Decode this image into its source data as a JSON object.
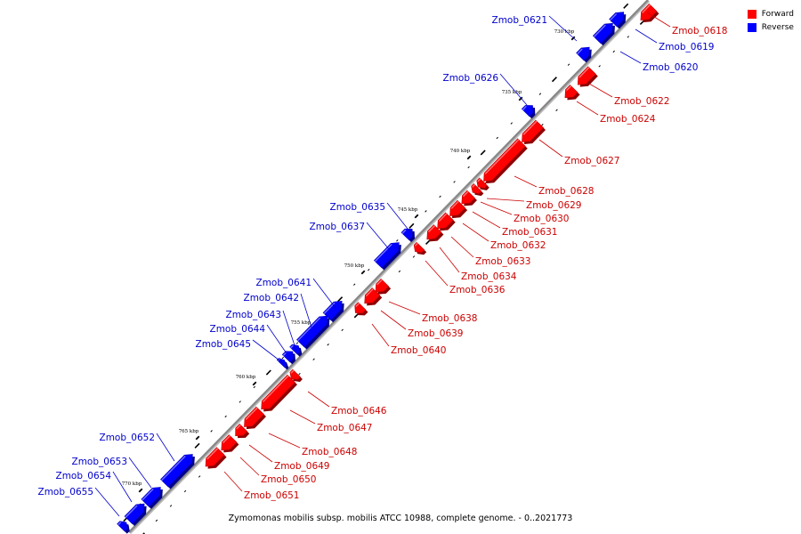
{
  "colors": {
    "forward": "#ff0000",
    "reverse": "#0000ff",
    "backbone": "#888888"
  },
  "legend": [
    {
      "label": "Forward",
      "color": "#ff0000"
    },
    {
      "label": "Reverse",
      "color": "#0000ff"
    }
  ],
  "caption": "Zymomonas mobilis subsp. mobilis ATCC 10988, complete genome. - 0..2021773",
  "scale_ticks": [
    "730 kbp",
    "735 kbp",
    "740 kbp",
    "745 kbp",
    "750 kbp",
    "755 kbp",
    "760 kbp",
    "765 kbp",
    "770 kbp"
  ],
  "genes": [
    {
      "name": "Zmob_0618",
      "strand": "forward"
    },
    {
      "name": "Zmob_0619",
      "strand": "reverse"
    },
    {
      "name": "Zmob_0620",
      "strand": "reverse"
    },
    {
      "name": "Zmob_0621",
      "strand": "reverse"
    },
    {
      "name": "Zmob_0622",
      "strand": "forward"
    },
    {
      "name": "Zmob_0624",
      "strand": "forward"
    },
    {
      "name": "Zmob_0626",
      "strand": "reverse"
    },
    {
      "name": "Zmob_0627",
      "strand": "forward"
    },
    {
      "name": "Zmob_0628",
      "strand": "forward"
    },
    {
      "name": "Zmob_0629",
      "strand": "forward"
    },
    {
      "name": "Zmob_0630",
      "strand": "forward"
    },
    {
      "name": "Zmob_0631",
      "strand": "forward"
    },
    {
      "name": "Zmob_0632",
      "strand": "forward"
    },
    {
      "name": "Zmob_0633",
      "strand": "forward"
    },
    {
      "name": "Zmob_0634",
      "strand": "forward"
    },
    {
      "name": "Zmob_0635",
      "strand": "reverse"
    },
    {
      "name": "Zmob_0636",
      "strand": "forward"
    },
    {
      "name": "Zmob_0637",
      "strand": "reverse"
    },
    {
      "name": "Zmob_0638",
      "strand": "forward"
    },
    {
      "name": "Zmob_0639",
      "strand": "forward"
    },
    {
      "name": "Zmob_0640",
      "strand": "forward"
    },
    {
      "name": "Zmob_0641",
      "strand": "reverse"
    },
    {
      "name": "Zmob_0642",
      "strand": "reverse"
    },
    {
      "name": "Zmob_0643",
      "strand": "reverse"
    },
    {
      "name": "Zmob_0644",
      "strand": "reverse"
    },
    {
      "name": "Zmob_0645",
      "strand": "reverse"
    },
    {
      "name": "Zmob_0646",
      "strand": "forward"
    },
    {
      "name": "Zmob_0647",
      "strand": "forward"
    },
    {
      "name": "Zmob_0648",
      "strand": "forward"
    },
    {
      "name": "Zmob_0649",
      "strand": "forward"
    },
    {
      "name": "Zmob_0650",
      "strand": "forward"
    },
    {
      "name": "Zmob_0651",
      "strand": "forward"
    },
    {
      "name": "Zmob_0652",
      "strand": "reverse"
    },
    {
      "name": "Zmob_0653",
      "strand": "reverse"
    },
    {
      "name": "Zmob_0654",
      "strand": "reverse"
    },
    {
      "name": "Zmob_0655",
      "strand": "reverse"
    }
  ]
}
